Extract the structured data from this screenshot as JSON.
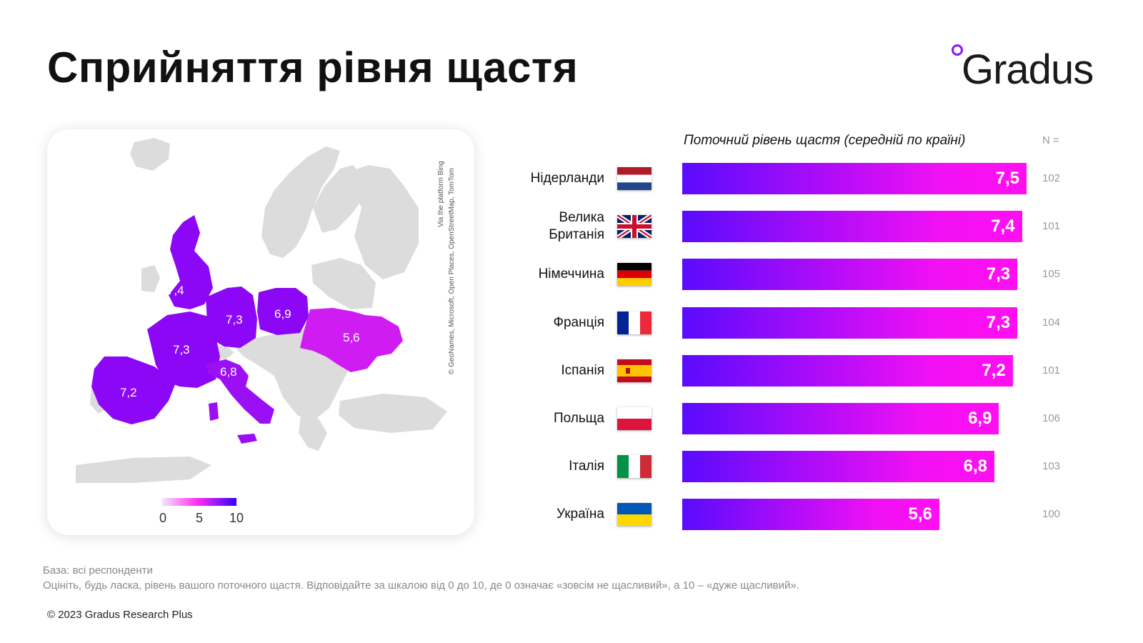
{
  "title": "Сприйняття рівня щастя",
  "logo": {
    "text": "Gradus",
    "dot_color": "#8a18f5"
  },
  "map": {
    "credit_line1": "Via the platform Bing",
    "credit_line2": "© GeoNames, Microsoft, Open Places, OpenStreetMap, TomTom",
    "legend_ticks": [
      "0",
      "5",
      "10"
    ],
    "legend_colors": [
      "#f1eafd",
      "#ff2df0",
      "#3300ff"
    ],
    "base_color": "#dcdcdc",
    "labels": [
      "7,4",
      "7,3",
      "6,9",
      "5,6",
      "7,3",
      "6,8",
      "7,2"
    ]
  },
  "chart_data": {
    "type": "bar",
    "orientation": "horizontal",
    "title": "Поточний рівень щастя (середній по країні)",
    "n_header": "N =",
    "categories": [
      "Нідерланди",
      "Велика Британія",
      "Німеччина",
      "Франція",
      "Іспанія",
      "Польща",
      "Італія",
      "Україна"
    ],
    "values": [
      7.5,
      7.4,
      7.3,
      7.3,
      7.2,
      6.9,
      6.8,
      5.6
    ],
    "value_labels": [
      "7,5",
      "7,4",
      "7,3",
      "7,3",
      "7,2",
      "6,9",
      "6,8",
      "5,6"
    ],
    "n_values": [
      "102",
      "101",
      "105",
      "104",
      "101",
      "106",
      "103",
      "100"
    ],
    "xlim": [
      0,
      7.5
    ],
    "bar_gradient": [
      "#5a0bfd",
      "#ff0ff0"
    ],
    "flags": [
      "netherlands-flag",
      "uk-flag",
      "germany-flag",
      "france-flag",
      "spain-flag",
      "poland-flag",
      "italy-flag",
      "ukraine-flag"
    ]
  },
  "footer": {
    "base": "База: всі респонденти",
    "question": "Оцініть, будь ласка, рівень вашого поточного щастя. Відповідайте за шкалою від 0 до 10, де 0 означає «зовсім не щасливий», а 10 – «дуже щасливий».",
    "copyright": "© 2023 Gradus Research Plus"
  }
}
